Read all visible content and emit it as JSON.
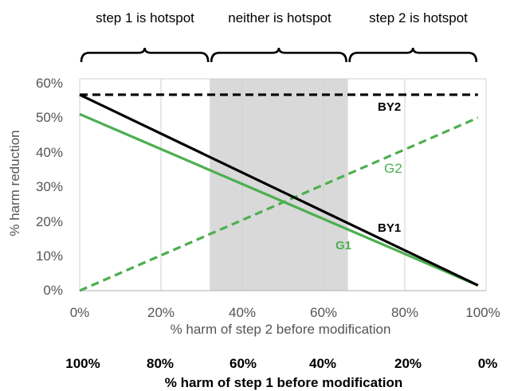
{
  "chart_data": {
    "type": "line",
    "xlabel": "% harm of step 2 before modification",
    "ylabel": "% harm reduction",
    "xlim": [
      0,
      100
    ],
    "ylim": [
      0,
      60
    ],
    "x_ticks": [
      "0%",
      "20%",
      "40%",
      "60%",
      "80%",
      "100%"
    ],
    "y_ticks": [
      "0%",
      "10%",
      "20%",
      "30%",
      "40%",
      "50%",
      "60%"
    ],
    "secondary_xlabel": "% harm of step 1 before modification",
    "secondary_x_ticks": [
      "100%",
      "80%",
      "60%",
      "40%",
      "20%",
      "0%"
    ],
    "regions": [
      {
        "label": "step 1 is hotspot",
        "x_range": [
          0,
          32
        ],
        "shaded": false
      },
      {
        "label": "neither is hotspot",
        "x_range": [
          32,
          66
        ],
        "shaded": true
      },
      {
        "label": "step 2 is hotspot",
        "x_range": [
          66,
          98
        ],
        "shaded": false
      }
    ],
    "series": [
      {
        "name": "BY2",
        "style": "dashed",
        "color": "#000000",
        "x": [
          0,
          98
        ],
        "y": [
          55.5,
          55.5
        ]
      },
      {
        "name": "BY1",
        "style": "solid",
        "color": "#000000",
        "x": [
          0,
          98
        ],
        "y": [
          55.5,
          1.5
        ]
      },
      {
        "name": "G1",
        "style": "solid",
        "color": "#4caf50",
        "x": [
          0,
          98
        ],
        "y": [
          50,
          1.5
        ]
      },
      {
        "name": "G2",
        "style": "dashed",
        "color": "#4caf50",
        "x": [
          0,
          98
        ],
        "y": [
          0,
          49
        ]
      }
    ],
    "grid": "vertical",
    "colors": {
      "shade": "#d9d9d9",
      "grid": "#d0d0d0",
      "green": "#4caf50",
      "black": "#000000"
    }
  }
}
